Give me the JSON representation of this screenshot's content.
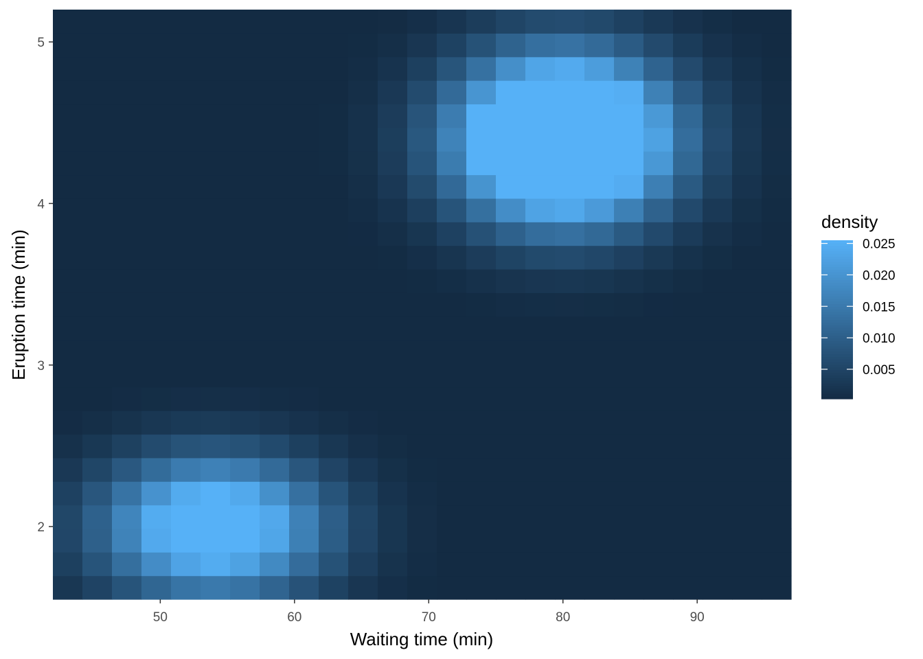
{
  "chart_data": {
    "type": "heatmap",
    "xlabel": "Waiting time (min)",
    "ylabel": "Eruption time (min)",
    "xlim": [
      42.0,
      97.0
    ],
    "ylim": [
      1.55,
      5.2
    ],
    "x_ticks": [
      50,
      60,
      70,
      80,
      90
    ],
    "y_ticks": [
      2,
      3,
      4,
      5
    ],
    "grid": false,
    "grid_nx": 25,
    "grid_ny": 25,
    "density_model": [
      {
        "w": 0.36,
        "mx": 54.0,
        "sx": 5.8,
        "my": 2.0,
        "sy": 0.3,
        "rho": 0.0
      },
      {
        "w": 0.64,
        "mx": 80.0,
        "sx": 5.6,
        "my": 4.4,
        "sy": 0.36,
        "rho": 0.0
      }
    ],
    "legend": {
      "title": "density",
      "position": "right",
      "breaks": [
        0.005,
        0.01,
        0.015,
        0.02,
        0.025
      ],
      "break_labels": [
        "0.005",
        "0.010",
        "0.015",
        "0.020",
        "0.025"
      ],
      "range": [
        0.0003,
        0.0255
      ]
    },
    "colors": {
      "low": "#132B43",
      "high": "#56B1F7"
    }
  }
}
